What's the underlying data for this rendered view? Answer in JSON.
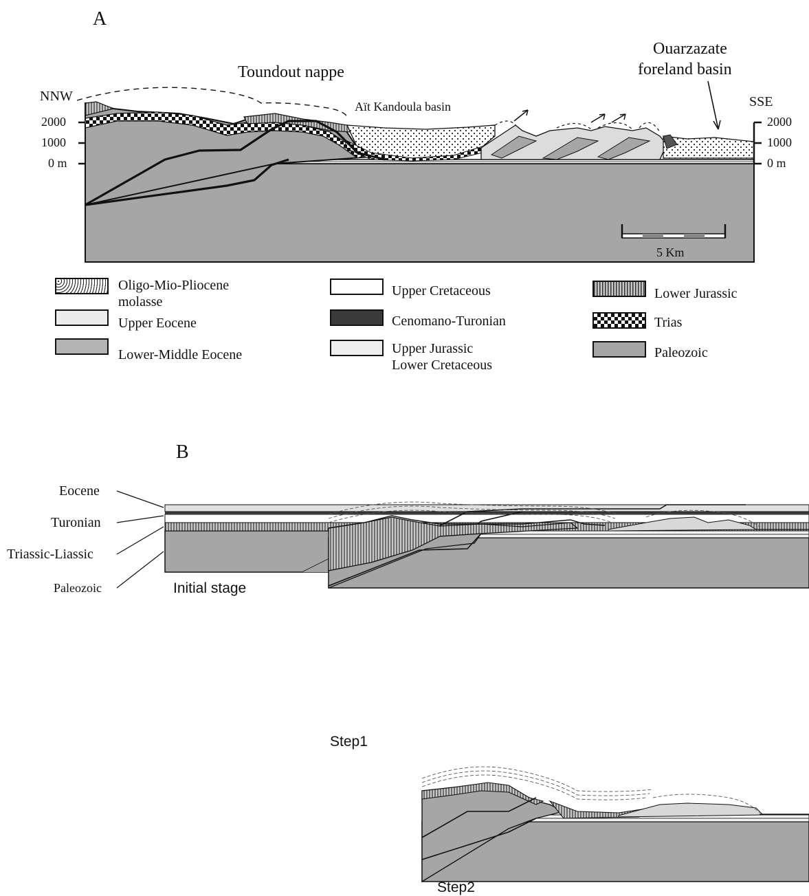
{
  "panel_a": {
    "letter": "A",
    "title_nappe": "Toundout nappe",
    "title_basin": "Aït Kandoula basin",
    "foreland_line1": "Ouarzazate",
    "foreland_line2": "foreland basin",
    "left_direction": "NNW",
    "right_direction": "SSE",
    "left_ticks": [
      "2000",
      "1000",
      "0 m"
    ],
    "right_ticks": [
      "2000",
      "1000",
      "0 m"
    ],
    "scale_label": "5 Km"
  },
  "legend": [
    {
      "label": "Oligo-Mio-Pliocene",
      "label2": "molasse",
      "pattern": "dots"
    },
    {
      "label": "Upper Eocene",
      "pattern": "fine-stipple"
    },
    {
      "label": "Lower-Middle Eocene",
      "pattern": "grey-stipple"
    },
    {
      "label": "Upper Cretaceous",
      "pattern": "white"
    },
    {
      "label": "Cenomano-Turonian",
      "pattern": "dark-grey"
    },
    {
      "label": "Upper Jurassic",
      "label2": "Lower Cretaceous",
      "pattern": "light-stipple"
    },
    {
      "label": "Lower Jurassic",
      "pattern": "vertical-lines"
    },
    {
      "label": "Trias",
      "pattern": "checker"
    },
    {
      "label": "Paleozoic",
      "pattern": "grey"
    }
  ],
  "panel_b": {
    "letter": "B",
    "layer_labels": [
      "Eocene",
      "Turonian",
      "Triassic-Liassic",
      "Paleozoic"
    ],
    "initial_stage": "Initial stage",
    "step1": "Step1",
    "step2": "Step2"
  },
  "colors": {
    "paleozoic": "#a6a6a6",
    "dark": "#3a3a3a",
    "light": "#e6e6e6"
  }
}
